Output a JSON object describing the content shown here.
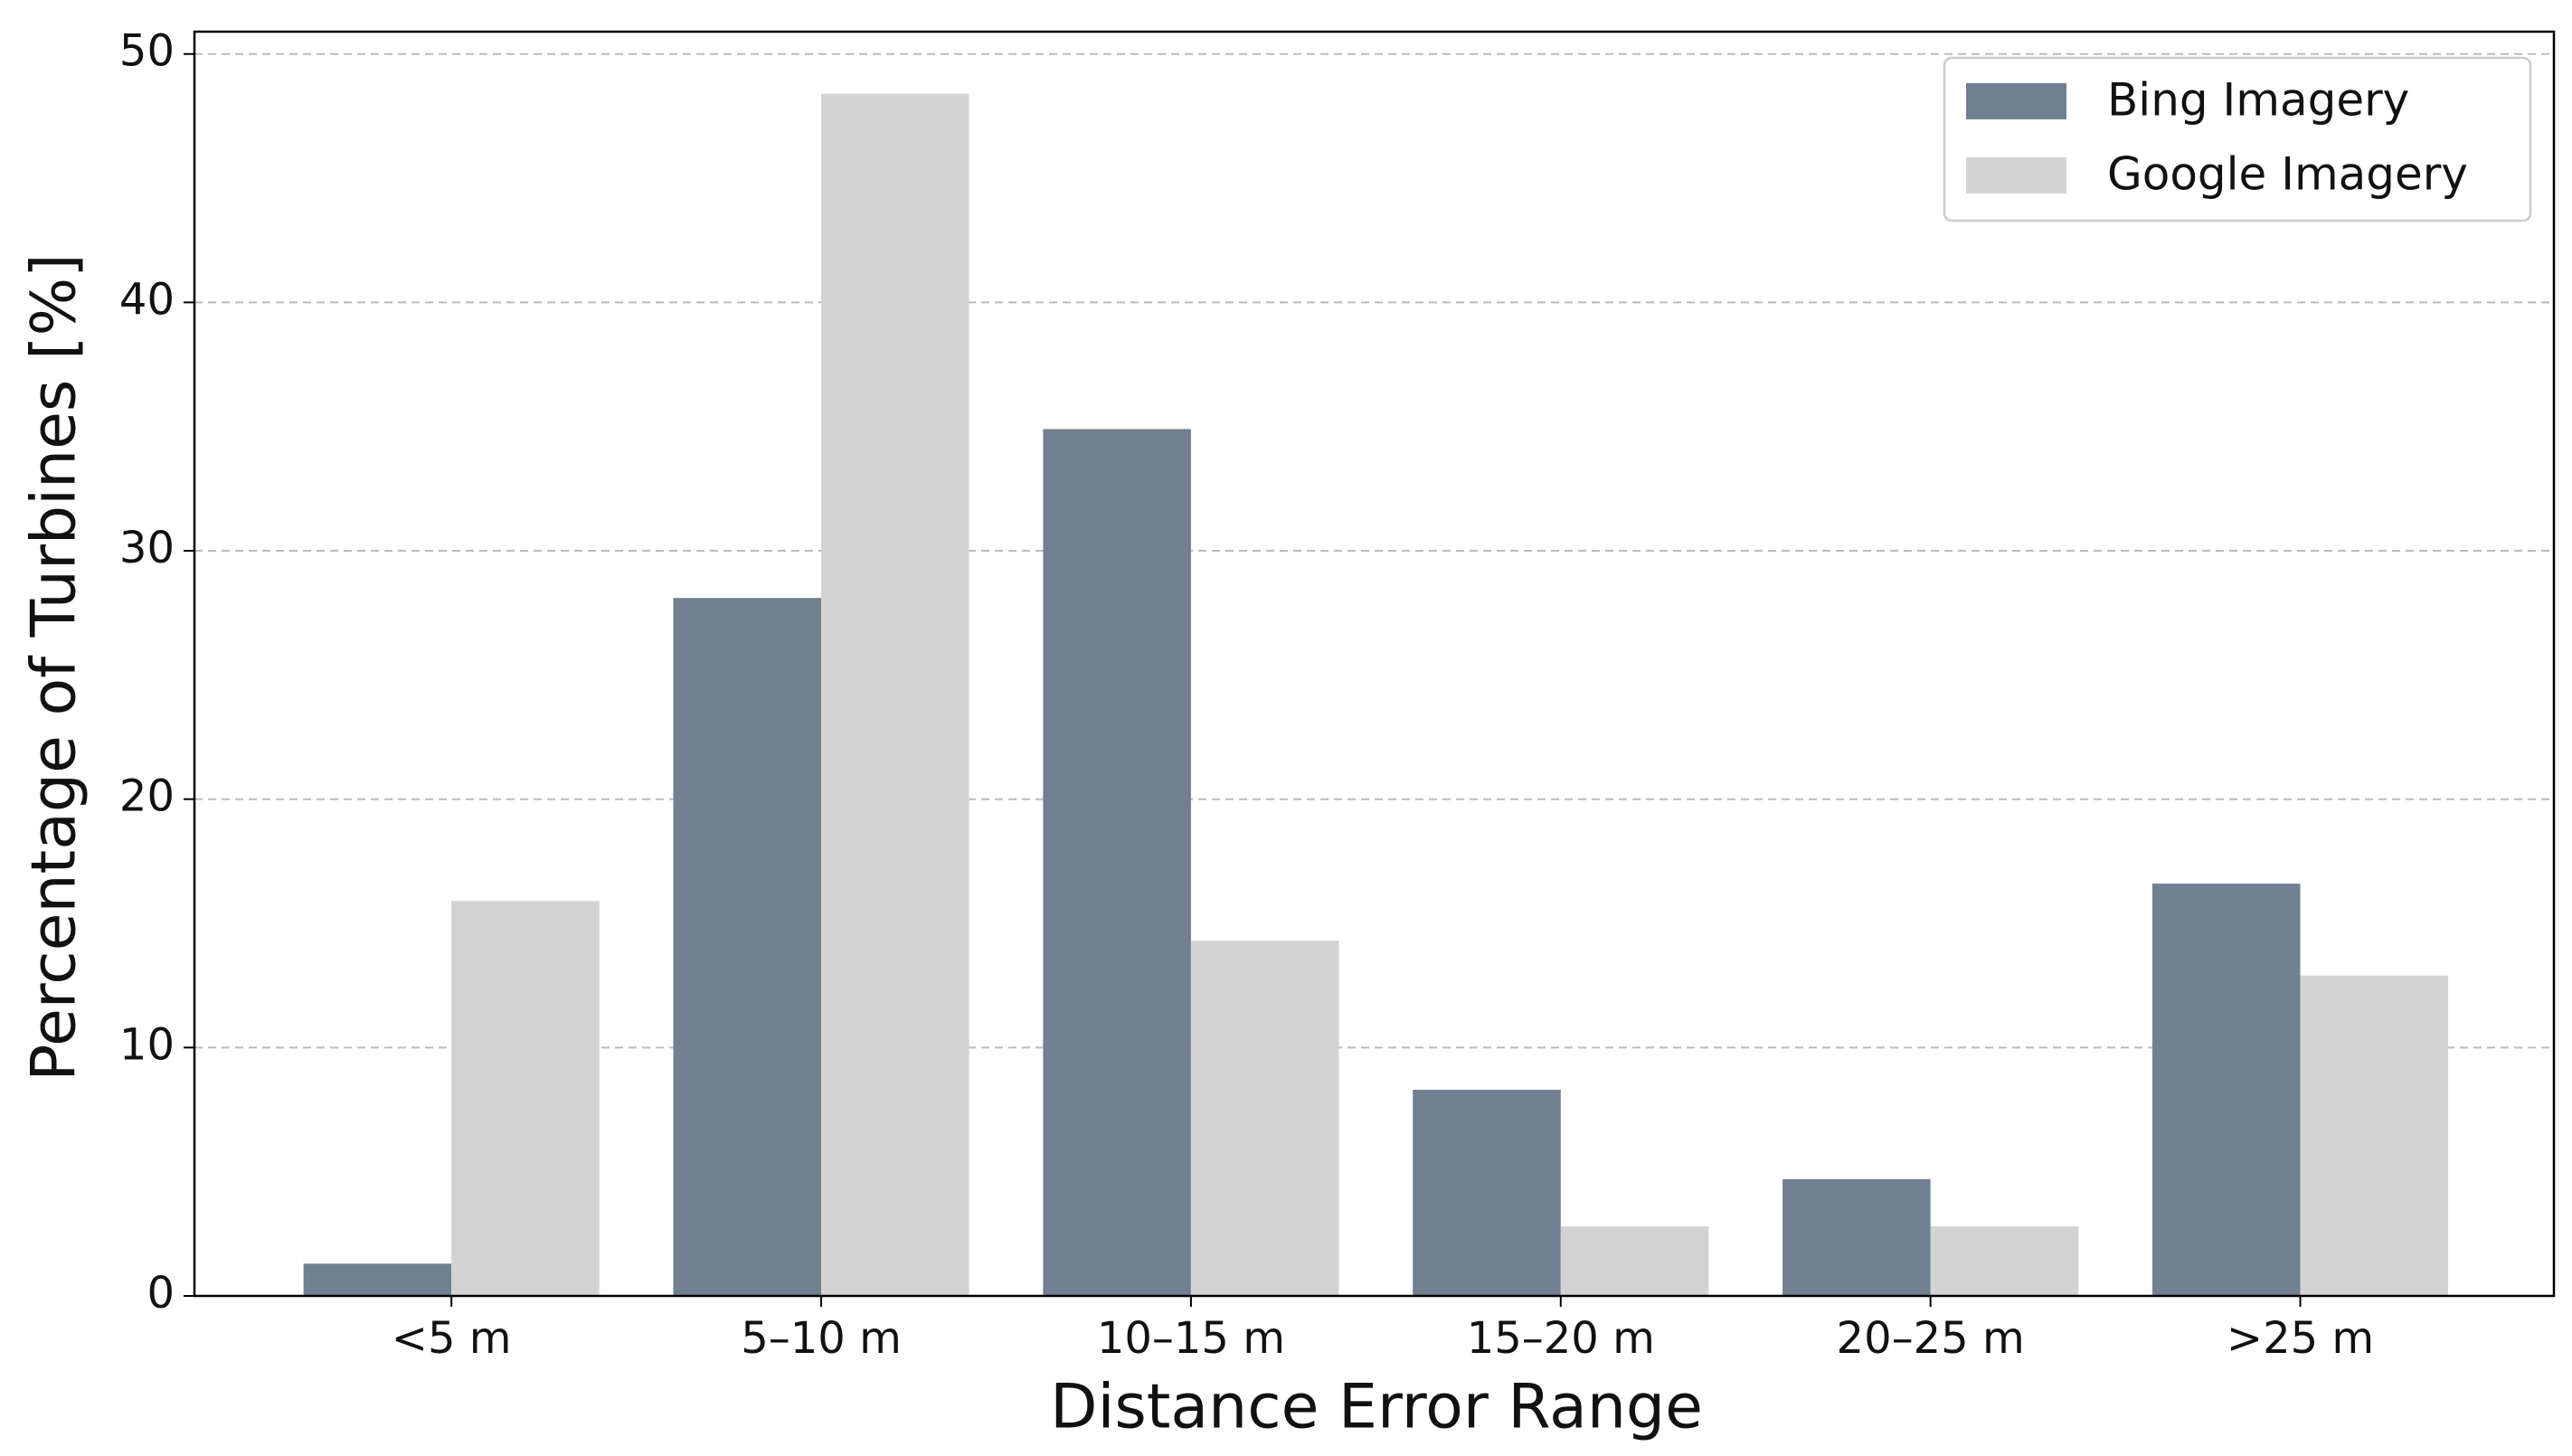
{
  "chart_data": {
    "type": "bar",
    "x_label": "Distance Error Range",
    "y_label": "Percentage of Turbines [%]",
    "categories": [
      "<5 m",
      "5–10 m",
      "10–15 m",
      "15–20 m",
      "20–25 m",
      ">25 m"
    ],
    "series": [
      {
        "name": "Bing Imagery",
        "color": "#708090",
        "values": [
          1.3,
          28.1,
          34.9,
          8.3,
          4.7,
          16.6
        ]
      },
      {
        "name": "Google Imagery",
        "color": "#d3d3d3",
        "values": [
          15.9,
          48.4,
          14.3,
          2.8,
          2.8,
          12.9
        ]
      }
    ],
    "ylim": [
      0,
      50.9
    ],
    "yticks": [
      0,
      10,
      20,
      30,
      40,
      50
    ],
    "grid": true,
    "legend": "upper right"
  }
}
